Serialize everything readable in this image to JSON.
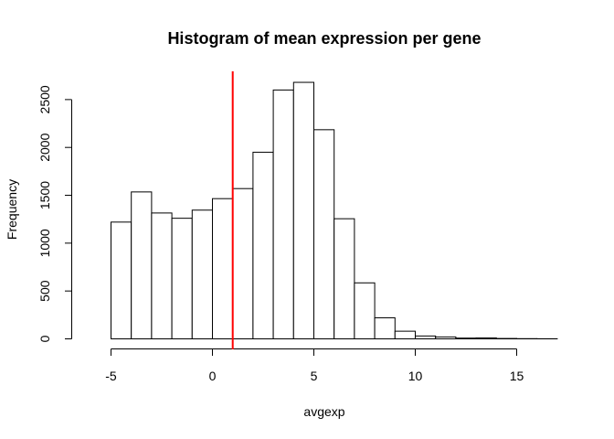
{
  "chart_data": {
    "type": "bar",
    "title": "Histogram of mean expression per gene",
    "xlabel": "avgexp",
    "ylabel": "Frequency",
    "bin_edges": [
      -5,
      -4,
      -3,
      -2,
      -1,
      0,
      1,
      2,
      3,
      4,
      5,
      6,
      7,
      8,
      9,
      10,
      11,
      12,
      13,
      14,
      15,
      16,
      17
    ],
    "values": [
      1220,
      1535,
      1315,
      1260,
      1345,
      1465,
      1570,
      1950,
      2600,
      2680,
      2185,
      1255,
      585,
      220,
      80,
      30,
      20,
      8,
      10,
      4,
      2,
      1
    ],
    "xlim": [
      -6,
      17
    ],
    "ylim": [
      0,
      2680
    ],
    "x_ticks": [
      "-5",
      "0",
      "5",
      "10",
      "15"
    ],
    "y_ticks": [
      "0",
      "500",
      "1000",
      "1500",
      "2000",
      "2500"
    ],
    "marker_line": {
      "x": 1,
      "color": "#ff0000"
    },
    "grid": false,
    "bar_fill": "#ffffff",
    "bar_stroke": "#000000"
  }
}
